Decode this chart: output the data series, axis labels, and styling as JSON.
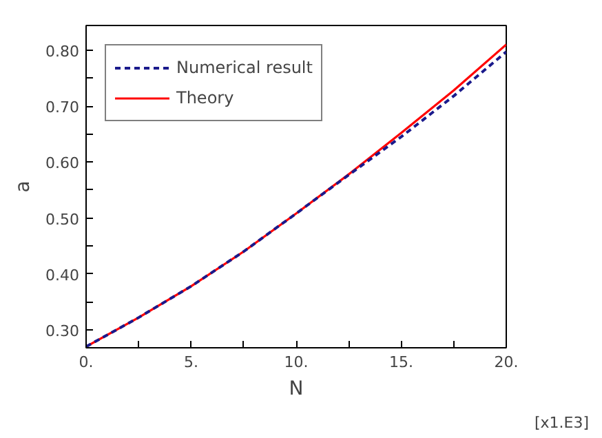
{
  "chart_data": {
    "type": "line",
    "xlabel": "N",
    "ylabel": "a",
    "x": [
      0,
      2.5,
      5,
      7.5,
      10,
      12.5,
      15,
      17.5,
      20
    ],
    "series": [
      {
        "name": "Numerical result",
        "color": "#1a1a8c",
        "line_style": "dashed",
        "values": [
          0.27,
          0.322,
          0.378,
          0.44,
          0.508,
          0.577,
          0.645,
          0.718,
          0.797
        ]
      },
      {
        "name": "Theory",
        "color": "#ff0000",
        "line_style": "solid",
        "values": [
          0.27,
          0.322,
          0.378,
          0.44,
          0.508,
          0.578,
          0.652,
          0.728,
          0.81
        ]
      }
    ],
    "xlim": [
      0,
      20
    ],
    "ylim": [
      0.268,
      0.844
    ],
    "xticks": [
      {
        "value": 0,
        "label": "0."
      },
      {
        "value": 2.5,
        "label": null
      },
      {
        "value": 5,
        "label": "5."
      },
      {
        "value": 7.5,
        "label": null
      },
      {
        "value": 10,
        "label": "10."
      },
      {
        "value": 12.5,
        "label": null
      },
      {
        "value": 15,
        "label": "15."
      },
      {
        "value": 17.5,
        "label": null
      },
      {
        "value": 20,
        "label": "20."
      }
    ],
    "yticks": [
      {
        "value": 0.3,
        "label": "0.30"
      },
      {
        "value": 0.35,
        "label": null
      },
      {
        "value": 0.4,
        "label": "0.40"
      },
      {
        "value": 0.45,
        "label": null
      },
      {
        "value": 0.5,
        "label": "0.50"
      },
      {
        "value": 0.55,
        "label": null
      },
      {
        "value": 0.6,
        "label": "0.60"
      },
      {
        "value": 0.65,
        "label": null
      },
      {
        "value": 0.7,
        "label": "0.70"
      },
      {
        "value": 0.75,
        "label": null
      },
      {
        "value": 0.8,
        "label": "0.80"
      }
    ],
    "annotations": [
      "[x1.E3]"
    ],
    "legend": "top left",
    "grid": false,
    "marker": "none"
  }
}
